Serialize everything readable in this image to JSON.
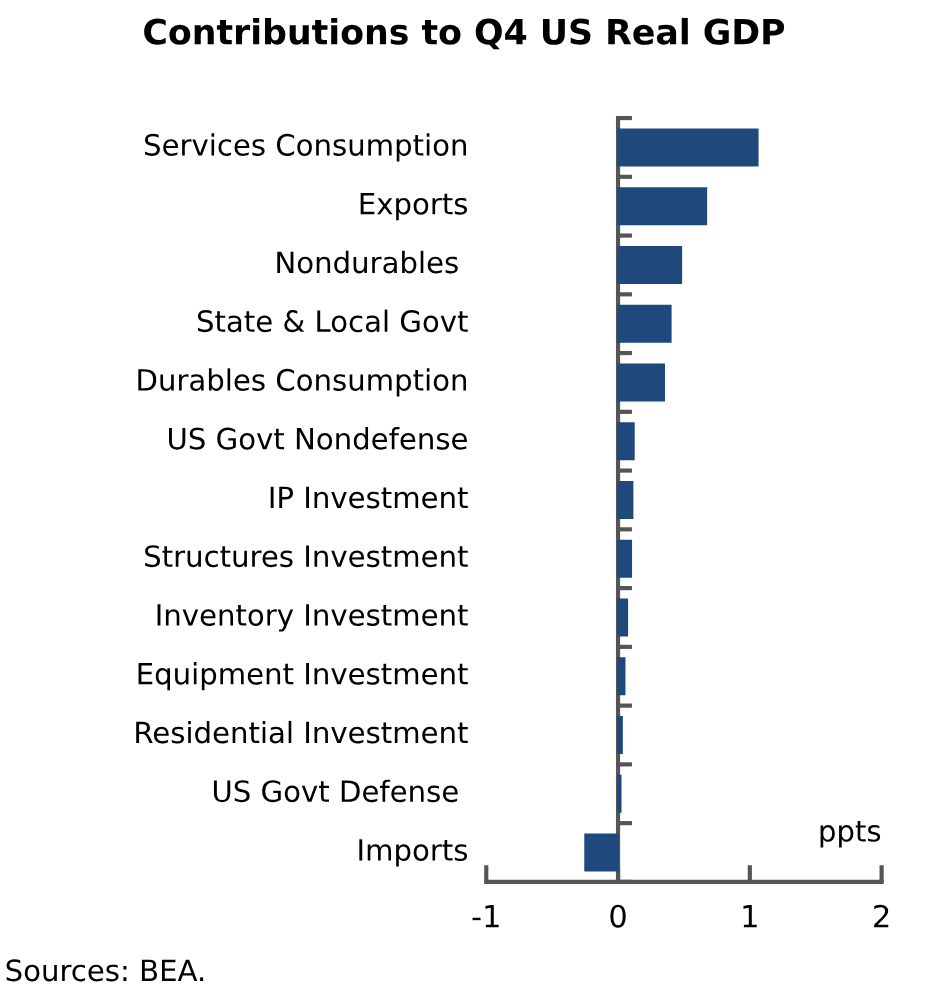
{
  "chart_data": {
    "type": "bar",
    "orientation": "horizontal",
    "title": "Contributions to Q4 US Real GDP",
    "categories": [
      "Services Consumption",
      "Exports",
      "Nondurables ",
      "State & Local Govt",
      "Durables Consumption",
      "US Govt Nondefense",
      "IP Investment",
      "Structures Investment",
      "Inventory Investment",
      "Equipment Investment",
      "Residential Investment",
      "US Govt Defense ",
      "Imports"
    ],
    "values": [
      1.06,
      0.67,
      0.48,
      0.4,
      0.35,
      0.12,
      0.11,
      0.1,
      0.07,
      0.05,
      0.03,
      0.02,
      -0.25
    ],
    "color": "#1f497d",
    "xlim": [
      -1,
      2
    ],
    "xticks": [
      -1,
      0,
      1,
      2
    ],
    "xlabel": "ppts",
    "legend": false,
    "annotations": [
      "Sources: BEA."
    ]
  }
}
